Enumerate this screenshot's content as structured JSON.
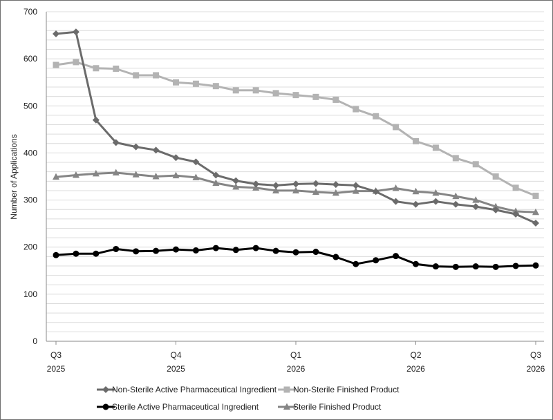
{
  "chart_data": {
    "type": "line",
    "ylabel": "Number of Applications",
    "xlabel": "",
    "ylim": [
      0,
      700
    ],
    "yticks": [
      0,
      100,
      200,
      300,
      400,
      500,
      600,
      700
    ],
    "grid": "horizontal",
    "legend_position": "bottom",
    "x_tick_labels": [
      {
        "quarter": "Q3",
        "year": "2025"
      },
      {
        "quarter": "Q4",
        "year": "2025"
      },
      {
        "quarter": "Q1",
        "year": "2026"
      },
      {
        "quarter": "Q2",
        "year": "2026"
      },
      {
        "quarter": "Q3",
        "year": "2026"
      }
    ],
    "series": [
      {
        "name": "Non-Sterile Active Pharmaceutical Ingredient",
        "color": "#6b6b6b",
        "marker": "diamond",
        "values": [
          653,
          657,
          470,
          422,
          413,
          406,
          390,
          381,
          353,
          341,
          334,
          331,
          334,
          335,
          333,
          331,
          318,
          297,
          291,
          297,
          291,
          286,
          279,
          270,
          251
        ]
      },
      {
        "name": "Non-Sterile Finished Product",
        "color": "#b3b3b3",
        "marker": "square",
        "values": [
          587,
          593,
          580,
          579,
          565,
          565,
          550,
          547,
          542,
          533,
          533,
          527,
          523,
          519,
          513,
          493,
          478,
          455,
          425,
          411,
          389,
          376,
          350,
          326,
          309
        ]
      },
      {
        "name": "Sterile Active Pharmaceutical Ingredient",
        "color": "#000000",
        "marker": "circle",
        "values": [
          183,
          186,
          186,
          196,
          191,
          192,
          195,
          193,
          198,
          194,
          198,
          192,
          189,
          190,
          179,
          164,
          172,
          181,
          164,
          159,
          158,
          159,
          158,
          160,
          161
        ]
      },
      {
        "name": "Sterile Finished Product",
        "color": "#858585",
        "marker": "triangle",
        "values": [
          349,
          353,
          356,
          358,
          354,
          350,
          352,
          348,
          336,
          328,
          326,
          320,
          320,
          317,
          315,
          319,
          319,
          325,
          318,
          315,
          308,
          300,
          286,
          276,
          274
        ]
      }
    ]
  }
}
